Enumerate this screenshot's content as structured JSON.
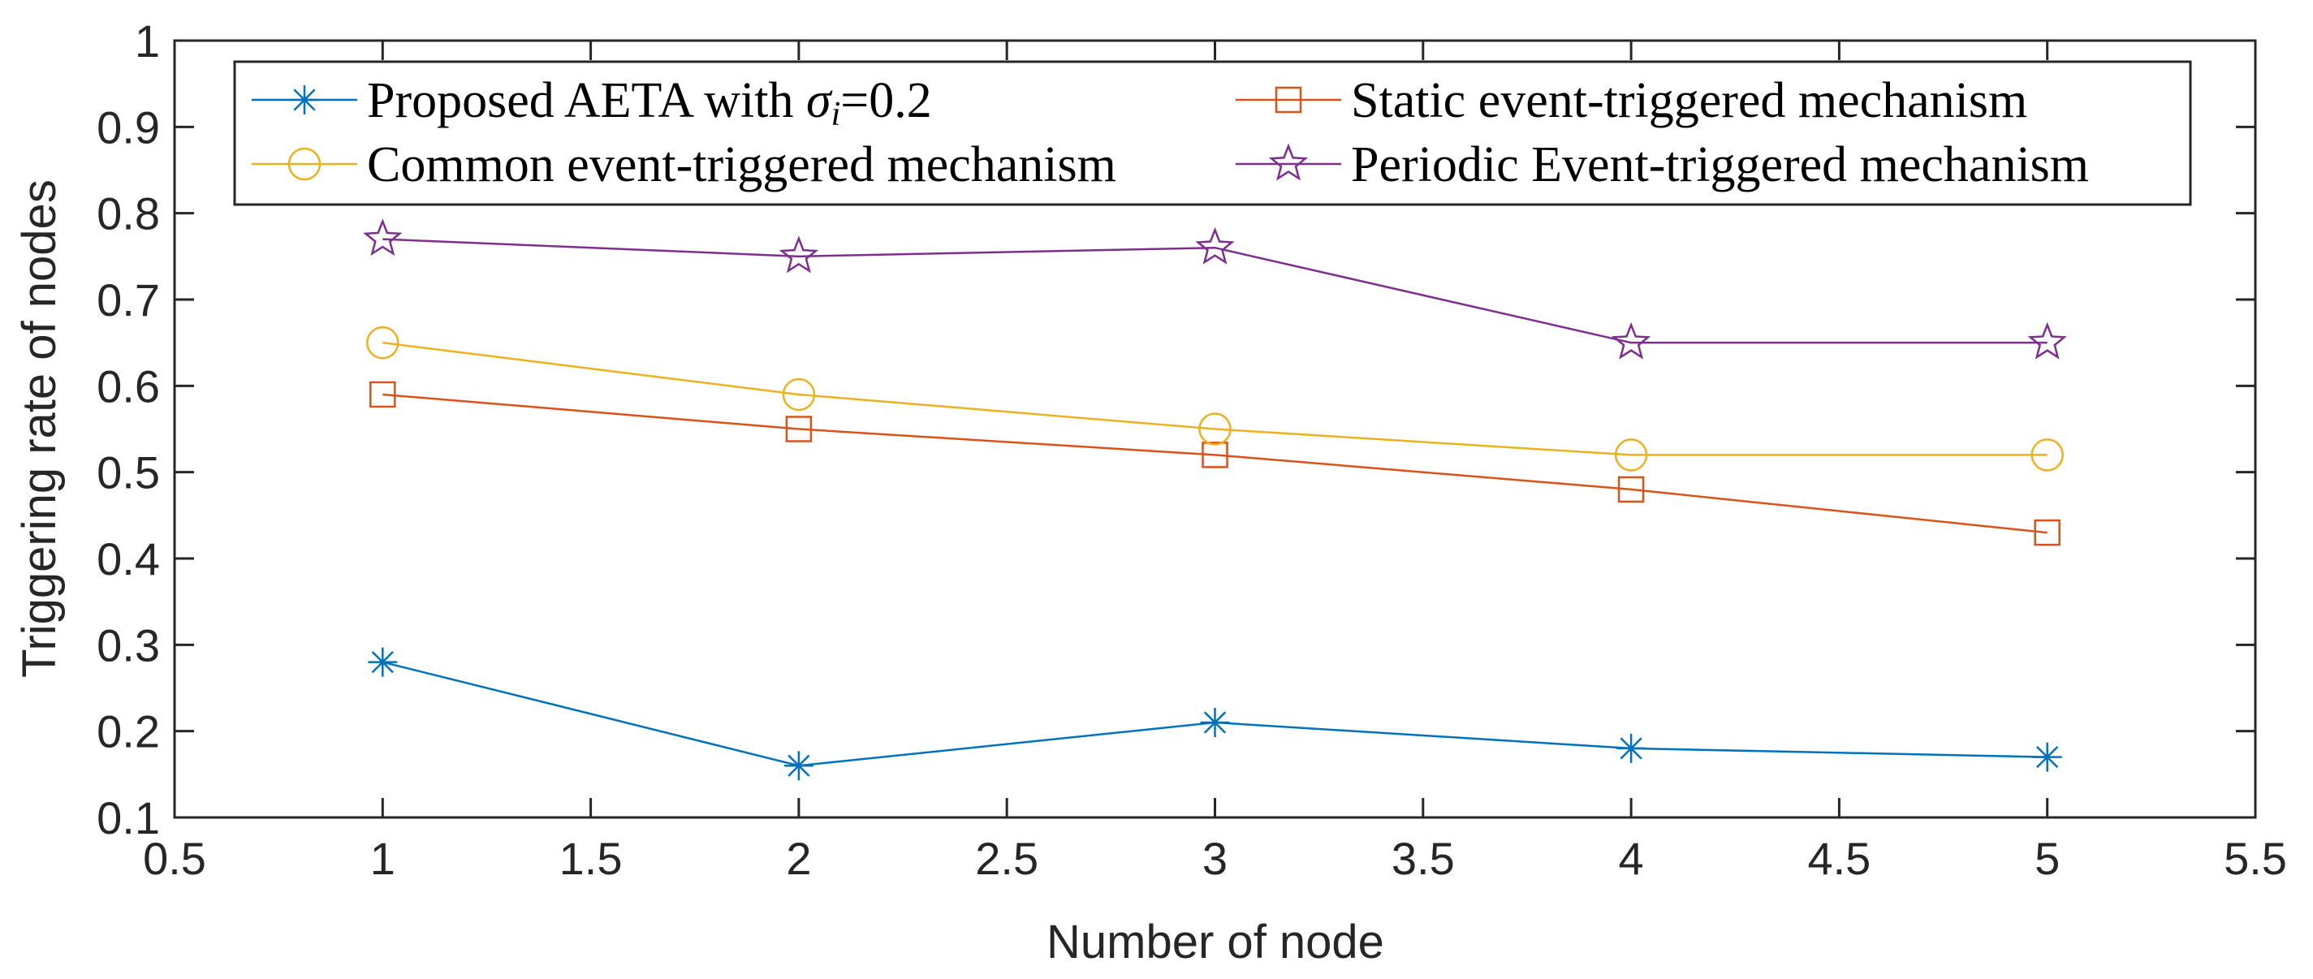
{
  "chart_data": {
    "type": "line",
    "title": "",
    "xlabel": "Number of node",
    "ylabel": "Triggering rate of nodes",
    "xlim": [
      0.5,
      5.5
    ],
    "ylim": [
      0.1,
      1
    ],
    "xticks": [
      0.5,
      1,
      1.5,
      2,
      2.5,
      3,
      3.5,
      4,
      4.5,
      5,
      5.5
    ],
    "xtick_labels": [
      "0.5",
      "1",
      "1.5",
      "2",
      "2.5",
      "3",
      "3.5",
      "4",
      "4.5",
      "5",
      "5.5"
    ],
    "yticks": [
      0.1,
      0.2,
      0.3,
      0.4,
      0.5,
      0.6,
      0.7,
      0.8,
      0.9,
      1
    ],
    "ytick_labels": [
      "0.1",
      "0.2",
      "0.3",
      "0.4",
      "0.5",
      "0.6",
      "0.7",
      "0.8",
      "0.9",
      "1"
    ],
    "grid": false,
    "legend_position": "top",
    "x": [
      1,
      2,
      3,
      4,
      5
    ],
    "series": [
      {
        "name": "Proposed AETA with σi=0.2",
        "legend_parts": {
          "prefix": "Proposed AETA with ",
          "symbol": "σ",
          "subscript": "i",
          "suffix": "=0.2"
        },
        "values": [
          0.28,
          0.16,
          0.21,
          0.18,
          0.17
        ],
        "color": "#0072BD",
        "marker": "asterisk"
      },
      {
        "name": "Static event-triggered mechanism",
        "values": [
          0.59,
          0.55,
          0.52,
          0.48,
          0.43
        ],
        "color": "#D95319",
        "marker": "square"
      },
      {
        "name": "Common event-triggered mechanism",
        "values": [
          0.65,
          0.59,
          0.55,
          0.52,
          0.52
        ],
        "color": "#EDB120",
        "marker": "circle"
      },
      {
        "name": "Periodic Event-triggered mechanism",
        "values": [
          0.77,
          0.75,
          0.76,
          0.65,
          0.65
        ],
        "color": "#7E2F8E",
        "marker": "star"
      }
    ]
  }
}
